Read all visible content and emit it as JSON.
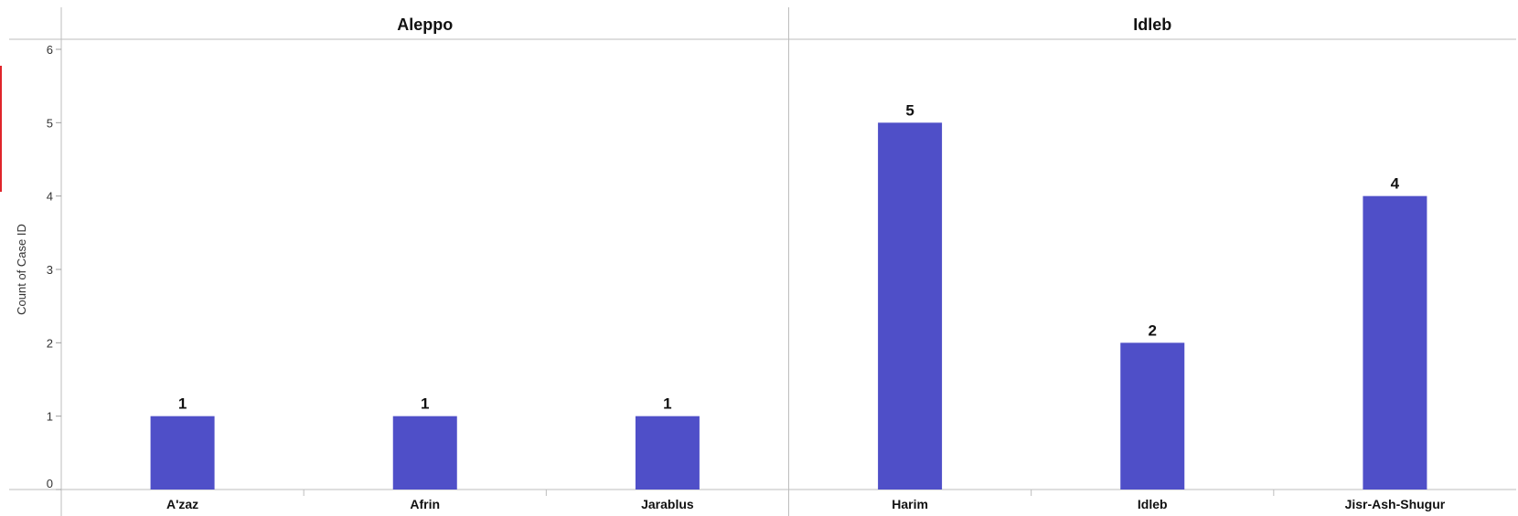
{
  "chart_data": {
    "type": "bar",
    "ylabel": "Count of Case ID",
    "ylim": [
      0,
      6
    ],
    "yticks": [
      "0",
      "1",
      "2",
      "3",
      "4",
      "5",
      "6"
    ],
    "grid": false,
    "bar_color": "#4f4fc8",
    "panels": [
      {
        "title": "Aleppo",
        "categories": [
          "A'zaz",
          "Afrin",
          "Jarablus"
        ],
        "values": [
          1,
          1,
          1
        ]
      },
      {
        "title": "Idleb",
        "categories": [
          "Harim",
          "Idleb",
          "Jisr-Ash-Shugur"
        ],
        "values": [
          5,
          2,
          4
        ]
      }
    ]
  }
}
